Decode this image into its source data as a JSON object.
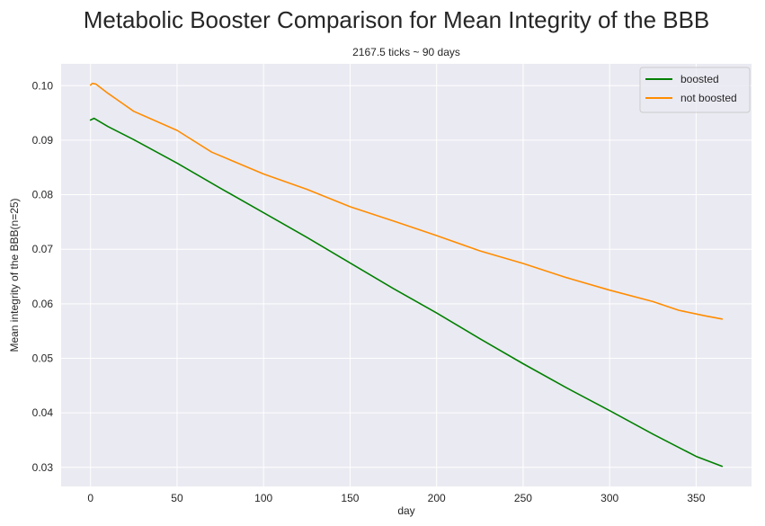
{
  "chart_data": {
    "type": "line",
    "suptitle": "Metabolic Booster Comparison for Mean Integrity of the BBB",
    "title": "2167.5 ticks ~ 90 days",
    "xlabel": "day",
    "ylabel": "Mean integrity of the BBB(n=25)",
    "xlim": [
      -17,
      382
    ],
    "ylim": [
      0.0265,
      0.104
    ],
    "xticks": [
      0,
      50,
      100,
      150,
      200,
      250,
      300,
      350
    ],
    "xtick_labels": [
      "0",
      "50",
      "100",
      "150",
      "200",
      "250",
      "300",
      "350"
    ],
    "yticks": [
      0.03,
      0.04,
      0.05,
      0.06,
      0.07,
      0.08,
      0.09,
      0.1
    ],
    "ytick_labels": [
      "0.03",
      "0.04",
      "0.05",
      "0.06",
      "0.07",
      "0.08",
      "0.09",
      "0.10"
    ],
    "grid": true,
    "legend_position": "top-right",
    "series": [
      {
        "name": "boosted",
        "color": "#008000",
        "x": [
          0,
          2,
          10,
          25,
          50,
          75,
          100,
          125,
          150,
          175,
          200,
          225,
          250,
          275,
          300,
          325,
          350,
          365
        ],
        "y": [
          0.0937,
          0.094,
          0.0925,
          0.0901,
          0.0858,
          0.0812,
          0.0767,
          0.0722,
          0.0675,
          0.0628,
          0.0583,
          0.0536,
          0.049,
          0.0446,
          0.0404,
          0.0361,
          0.032,
          0.0302
        ]
      },
      {
        "name": "not boosted",
        "color": "#ff8c00",
        "x": [
          0,
          1,
          3,
          10,
          25,
          50,
          70,
          100,
          125,
          150,
          175,
          200,
          225,
          250,
          275,
          300,
          325,
          340,
          355,
          365
        ],
        "y": [
          0.1001,
          0.1004,
          0.1003,
          0.0986,
          0.0953,
          0.0918,
          0.0878,
          0.0838,
          0.081,
          0.0778,
          0.0752,
          0.0725,
          0.0697,
          0.0674,
          0.0648,
          0.0625,
          0.0604,
          0.0588,
          0.0578,
          0.0572
        ]
      }
    ]
  }
}
